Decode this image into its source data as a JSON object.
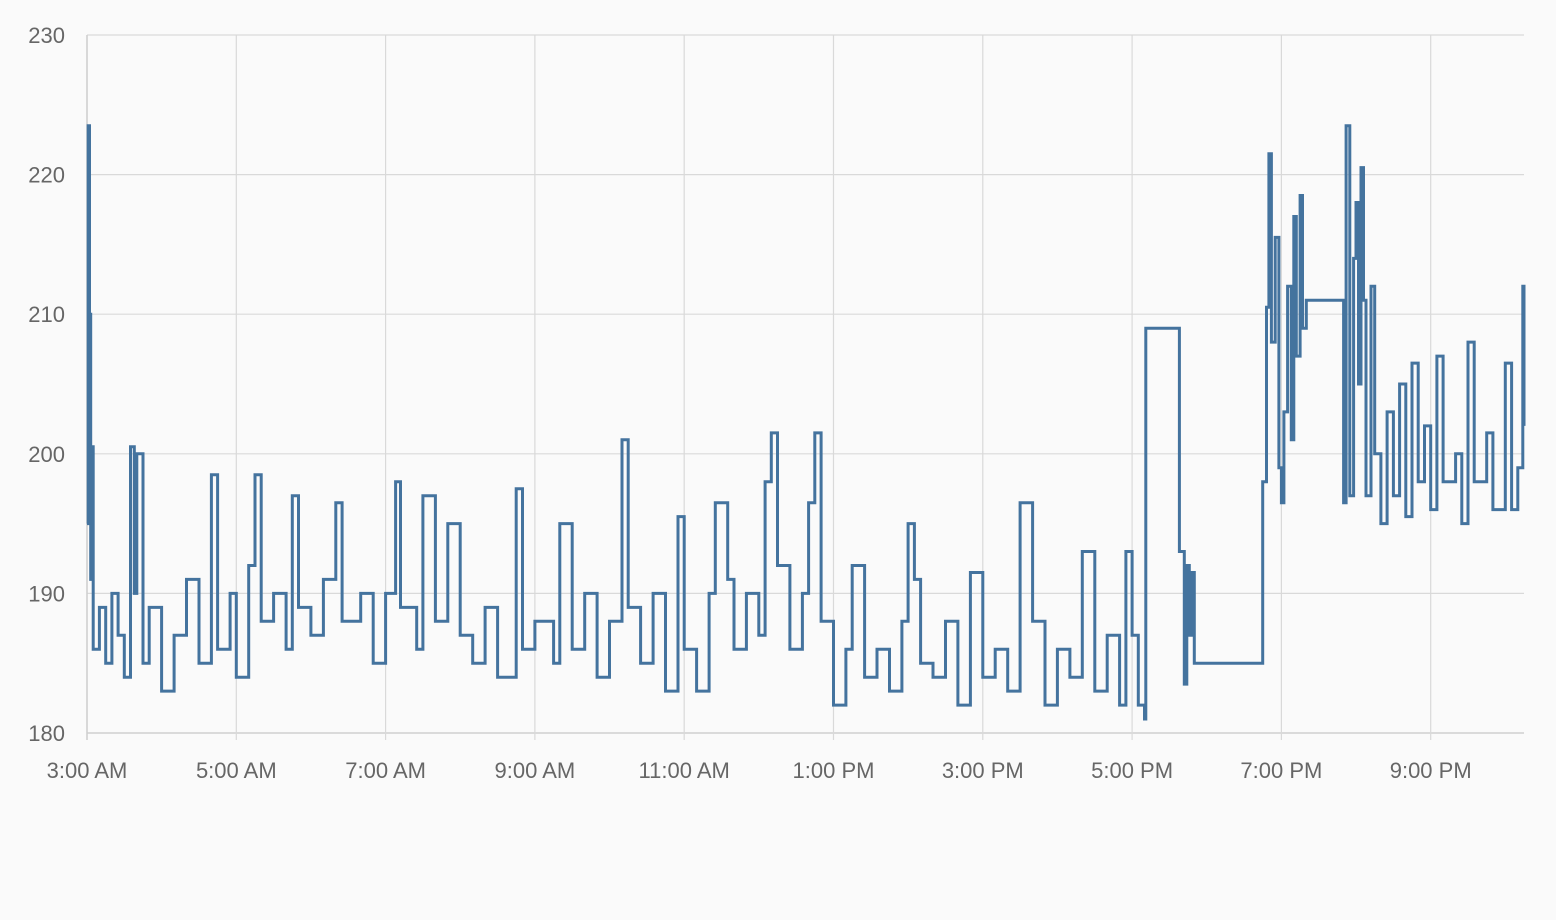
{
  "chart_data": {
    "type": "line",
    "y_ticks": [
      180,
      190,
      200,
      210,
      220,
      230
    ],
    "ylim": [
      180,
      230
    ],
    "x_ticks": [
      "3:00 AM",
      "5:00 AM",
      "7:00 AM",
      "9:00 AM",
      "11:00 AM",
      "1:00 PM",
      "3:00 PM",
      "5:00 PM",
      "7:00 PM",
      "9:00 PM"
    ],
    "xlim": [
      "3:00 AM",
      "10:15 PM"
    ],
    "grid": true,
    "series": [
      {
        "color": "#44739e",
        "interpolation": "step",
        "points": [
          [
            "3:00 AM",
            195
          ],
          [
            "3:01 AM",
            223.5
          ],
          [
            "3:02 AM",
            210
          ],
          [
            "3:03 AM",
            191
          ],
          [
            "3:04 AM",
            200.5
          ],
          [
            "3:05 AM",
            186
          ],
          [
            "3:10 AM",
            189
          ],
          [
            "3:15 AM",
            185
          ],
          [
            "3:20 AM",
            190
          ],
          [
            "3:25 AM",
            187
          ],
          [
            "3:30 AM",
            184
          ],
          [
            "3:35 AM",
            200.5
          ],
          [
            "3:38 AM",
            190
          ],
          [
            "3:40 AM",
            200
          ],
          [
            "3:45 AM",
            185
          ],
          [
            "3:50 AM",
            189
          ],
          [
            "4:00 AM",
            183
          ],
          [
            "4:10 AM",
            187
          ],
          [
            "4:20 AM",
            191
          ],
          [
            "4:30 AM",
            185
          ],
          [
            "4:40 AM",
            198.5
          ],
          [
            "4:45 AM",
            186
          ],
          [
            "4:55 AM",
            190
          ],
          [
            "5:00 AM",
            184
          ],
          [
            "5:10 AM",
            192
          ],
          [
            "5:15 AM",
            198.5
          ],
          [
            "5:20 AM",
            188
          ],
          [
            "5:30 AM",
            190
          ],
          [
            "5:40 AM",
            186
          ],
          [
            "5:45 AM",
            197
          ],
          [
            "5:50 AM",
            189
          ],
          [
            "6:00 AM",
            187
          ],
          [
            "6:10 AM",
            191
          ],
          [
            "6:20 AM",
            196.5
          ],
          [
            "6:25 AM",
            188
          ],
          [
            "6:40 AM",
            190
          ],
          [
            "6:50 AM",
            185
          ],
          [
            "7:00 AM",
            190
          ],
          [
            "7:08 AM",
            198
          ],
          [
            "7:12 AM",
            189
          ],
          [
            "7:25 AM",
            186
          ],
          [
            "7:30 AM",
            197
          ],
          [
            "7:40 AM",
            188
          ],
          [
            "7:50 AM",
            195
          ],
          [
            "8:00 AM",
            187
          ],
          [
            "8:10 AM",
            185
          ],
          [
            "8:20 AM",
            189
          ],
          [
            "8:30 AM",
            184
          ],
          [
            "8:45 AM",
            197.5
          ],
          [
            "8:50 AM",
            186
          ],
          [
            "9:00 AM",
            188
          ],
          [
            "9:15 AM",
            185
          ],
          [
            "9:20 AM",
            195
          ],
          [
            "9:30 AM",
            186
          ],
          [
            "9:40 AM",
            190
          ],
          [
            "9:50 AM",
            184
          ],
          [
            "10:00 AM",
            188
          ],
          [
            "10:10 AM",
            201
          ],
          [
            "10:15 AM",
            189
          ],
          [
            "10:25 AM",
            185
          ],
          [
            "10:35 AM",
            190
          ],
          [
            "10:45 AM",
            183
          ],
          [
            "10:55 AM",
            195.5
          ],
          [
            "11:00 AM",
            186
          ],
          [
            "11:10 AM",
            183
          ],
          [
            "11:20 AM",
            190
          ],
          [
            "11:25 AM",
            196.5
          ],
          [
            "11:35 AM",
            191
          ],
          [
            "11:40 AM",
            186
          ],
          [
            "11:50 AM",
            190
          ],
          [
            "12:00 PM",
            187
          ],
          [
            "12:05 PM",
            198
          ],
          [
            "12:10 PM",
            201.5
          ],
          [
            "12:15 PM",
            192
          ],
          [
            "12:25 PM",
            186
          ],
          [
            "12:35 PM",
            190
          ],
          [
            "12:40 PM",
            196.5
          ],
          [
            "12:45 PM",
            201.5
          ],
          [
            "12:50 PM",
            188
          ],
          [
            "1:00 PM",
            182
          ],
          [
            "1:10 PM",
            186
          ],
          [
            "1:15 PM",
            192
          ],
          [
            "1:25 PM",
            184
          ],
          [
            "1:35 PM",
            186
          ],
          [
            "1:45 PM",
            183
          ],
          [
            "1:55 PM",
            188
          ],
          [
            "2:00 PM",
            195
          ],
          [
            "2:05 PM",
            191
          ],
          [
            "2:10 PM",
            185
          ],
          [
            "2:20 PM",
            184
          ],
          [
            "2:30 PM",
            188
          ],
          [
            "2:40 PM",
            182
          ],
          [
            "2:50 PM",
            191.5
          ],
          [
            "3:00 PM",
            184
          ],
          [
            "3:10 PM",
            186
          ],
          [
            "3:20 PM",
            183
          ],
          [
            "3:30 PM",
            196.5
          ],
          [
            "3:40 PM",
            188
          ],
          [
            "3:50 PM",
            182
          ],
          [
            "4:00 PM",
            186
          ],
          [
            "4:10 PM",
            184
          ],
          [
            "4:20 PM",
            193
          ],
          [
            "4:30 PM",
            183
          ],
          [
            "4:40 PM",
            187
          ],
          [
            "4:50 PM",
            182
          ],
          [
            "4:55 PM",
            193
          ],
          [
            "5:00 PM",
            187
          ],
          [
            "5:05 PM",
            182
          ],
          [
            "5:10 PM",
            181
          ],
          [
            "5:11 PM",
            209
          ],
          [
            "5:38 PM",
            193
          ],
          [
            "5:42 PM",
            183.5
          ],
          [
            "5:44 PM",
            192
          ],
          [
            "5:46 PM",
            187
          ],
          [
            "5:48 PM",
            191.5
          ],
          [
            "5:50 PM",
            185
          ],
          [
            "6:45 PM",
            198
          ],
          [
            "6:48 PM",
            210.5
          ],
          [
            "6:50 PM",
            221.5
          ],
          [
            "6:52 PM",
            208
          ],
          [
            "6:55 PM",
            215.5
          ],
          [
            "6:58 PM",
            199
          ],
          [
            "7:00 PM",
            196.5
          ],
          [
            "7:02 PM",
            203
          ],
          [
            "7:05 PM",
            212
          ],
          [
            "7:08 PM",
            201
          ],
          [
            "7:10 PM",
            217
          ],
          [
            "7:12 PM",
            207
          ],
          [
            "7:15 PM",
            218.5
          ],
          [
            "7:17 PM",
            209
          ],
          [
            "7:20 PM",
            211
          ],
          [
            "7:50 PM",
            196.5
          ],
          [
            "7:52 PM",
            223.5
          ],
          [
            "7:55 PM",
            197
          ],
          [
            "7:58 PM",
            214
          ],
          [
            "8:00 PM",
            218
          ],
          [
            "8:02 PM",
            205
          ],
          [
            "8:04 PM",
            220.5
          ],
          [
            "8:06 PM",
            211
          ],
          [
            "8:08 PM",
            197
          ],
          [
            "8:12 PM",
            212
          ],
          [
            "8:15 PM",
            200
          ],
          [
            "8:20 PM",
            195
          ],
          [
            "8:25 PM",
            203
          ],
          [
            "8:30 PM",
            197
          ],
          [
            "8:35 PM",
            205
          ],
          [
            "8:40 PM",
            195.5
          ],
          [
            "8:45 PM",
            206.5
          ],
          [
            "8:50 PM",
            198
          ],
          [
            "8:55 PM",
            202
          ],
          [
            "9:00 PM",
            196
          ],
          [
            "9:05 PM",
            207
          ],
          [
            "9:10 PM",
            198
          ],
          [
            "9:20 PM",
            200
          ],
          [
            "9:25 PM",
            195
          ],
          [
            "9:30 PM",
            208
          ],
          [
            "9:35 PM",
            198
          ],
          [
            "9:45 PM",
            201.5
          ],
          [
            "9:50 PM",
            196
          ],
          [
            "10:00 PM",
            206.5
          ],
          [
            "10:05 PM",
            196
          ],
          [
            "10:10 PM",
            199
          ],
          [
            "10:14 PM",
            212
          ],
          [
            "10:15 PM",
            202
          ]
        ]
      }
    ]
  }
}
